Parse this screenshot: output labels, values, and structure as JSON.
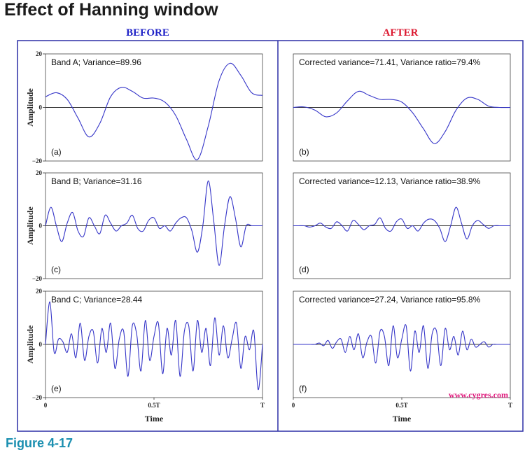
{
  "page": {
    "title": "Effect of Hanning window",
    "figure_label": "Figure 4-17",
    "before_header": "BEFORE",
    "after_header": "AFTER",
    "watermark": "www.cygres.com",
    "colors": {
      "before": "#1f22c7",
      "after": "#dc1830",
      "frame": "#2c2fa6",
      "curve": "#3535c8",
      "watermark": "#e0187c"
    }
  },
  "chart_data": [
    {
      "type": "line",
      "panel": "(a)",
      "annotation": "Band A; Variance=89.96",
      "ylabel": "Amplitude",
      "xlabel": "",
      "ylim": [
        -20,
        20
      ],
      "yticks": [
        "20",
        "0",
        "−20"
      ],
      "xticks": [],
      "series": [
        {
          "name": "Band A",
          "x": [
            0,
            0.05,
            0.1,
            0.15,
            0.2,
            0.25,
            0.3,
            0.35,
            0.4,
            0.45,
            0.5,
            0.55,
            0.6,
            0.65,
            0.7,
            0.75,
            0.8,
            0.85,
            0.9,
            0.95,
            1
          ],
          "values": [
            4,
            5.5,
            3,
            -4,
            -11,
            -6,
            4,
            7.5,
            6,
            3.5,
            3.5,
            2,
            -3,
            -12,
            -19.5,
            -7,
            10,
            16.5,
            12,
            5.5,
            4.5
          ]
        }
      ]
    },
    {
      "type": "line",
      "panel": "(b)",
      "annotation": "Corrected variance=71.41, Variance ratio=79.4%",
      "ylabel": "",
      "xlabel": "",
      "ylim": [
        -20,
        20
      ],
      "yticks": [],
      "xticks": [],
      "series": [
        {
          "name": "Band A windowed",
          "x": [
            0,
            0.05,
            0.1,
            0.15,
            0.2,
            0.25,
            0.3,
            0.35,
            0.4,
            0.45,
            0.5,
            0.55,
            0.6,
            0.65,
            0.7,
            0.75,
            0.8,
            0.85,
            0.9,
            0.95,
            1
          ],
          "values": [
            0,
            0.2,
            -1,
            -3.5,
            -2,
            2.5,
            6,
            4.5,
            3,
            3,
            2,
            -2,
            -8,
            -13.5,
            -9,
            -1,
            3.5,
            3,
            0.5,
            0,
            0
          ]
        }
      ]
    },
    {
      "type": "line",
      "panel": "(c)",
      "annotation": "Band B; Variance=31.16",
      "ylabel": "Amplitude",
      "xlabel": "",
      "ylim": [
        -20,
        20
      ],
      "yticks": [
        "20",
        "0",
        "−20"
      ],
      "xticks": [],
      "series": [
        {
          "name": "Band B",
          "x": [
            0,
            0.025,
            0.05,
            0.075,
            0.1,
            0.125,
            0.15,
            0.175,
            0.2,
            0.225,
            0.25,
            0.275,
            0.3,
            0.325,
            0.35,
            0.375,
            0.4,
            0.425,
            0.45,
            0.475,
            0.5,
            0.525,
            0.55,
            0.575,
            0.6,
            0.625,
            0.65,
            0.675,
            0.7,
            0.725,
            0.75,
            0.775,
            0.8,
            0.825,
            0.85,
            0.875,
            0.9,
            0.925,
            0.95,
            0.975,
            1
          ],
          "values": [
            0,
            7,
            0,
            -6,
            1,
            5,
            -2,
            -4,
            3,
            0,
            -3,
            4,
            1,
            -2,
            0,
            1,
            4,
            -1,
            -2,
            2,
            3,
            -1,
            0,
            -2,
            1,
            3,
            3,
            -2,
            -10,
            0,
            17,
            2,
            -15,
            0,
            11,
            3,
            -8,
            0,
            0,
            0,
            0
          ]
        }
      ]
    },
    {
      "type": "line",
      "panel": "(d)",
      "annotation": "Corrected variance=12.13,  Variance ratio=38.9%",
      "ylabel": "",
      "xlabel": "",
      "ylim": [
        -20,
        20
      ],
      "yticks": [],
      "xticks": [],
      "series": [
        {
          "name": "Band B windowed",
          "x": [
            0,
            0.025,
            0.05,
            0.075,
            0.1,
            0.125,
            0.15,
            0.175,
            0.2,
            0.225,
            0.25,
            0.275,
            0.3,
            0.325,
            0.35,
            0.375,
            0.4,
            0.425,
            0.45,
            0.475,
            0.5,
            0.525,
            0.55,
            0.575,
            0.6,
            0.625,
            0.65,
            0.675,
            0.7,
            0.725,
            0.75,
            0.775,
            0.8,
            0.825,
            0.85,
            0.875,
            0.9,
            0.925,
            0.95,
            0.975,
            1
          ],
          "values": [
            0,
            0,
            0,
            -0.5,
            0,
            1,
            -0.5,
            -1,
            1.5,
            0,
            -2,
            2,
            0.5,
            -1.5,
            0,
            0.5,
            3,
            -1,
            -2,
            1.5,
            2.5,
            -1,
            0,
            -2,
            1,
            2.5,
            2,
            -1,
            -6,
            0,
            7,
            1,
            -5,
            0,
            2,
            0.5,
            -1,
            0,
            0,
            0,
            0
          ]
        }
      ]
    },
    {
      "type": "line",
      "panel": "(e)",
      "annotation": "Band C; Variance=28.44",
      "ylabel": "Amplitude",
      "xlabel": "Time",
      "ylim": [
        -20,
        20
      ],
      "yticks": [
        "20",
        "0",
        "−20"
      ],
      "xticks": [
        "0",
        "0.5T",
        "T"
      ],
      "series": [
        {
          "name": "Band C",
          "x": [
            0,
            0.02,
            0.04,
            0.06,
            0.08,
            0.1,
            0.12,
            0.14,
            0.16,
            0.18,
            0.2,
            0.22,
            0.24,
            0.26,
            0.28,
            0.3,
            0.32,
            0.34,
            0.36,
            0.38,
            0.4,
            0.42,
            0.44,
            0.46,
            0.48,
            0.5,
            0.52,
            0.54,
            0.56,
            0.58,
            0.6,
            0.62,
            0.64,
            0.66,
            0.68,
            0.7,
            0.72,
            0.74,
            0.76,
            0.78,
            0.8,
            0.82,
            0.84,
            0.86,
            0.88,
            0.9,
            0.92,
            0.94,
            0.96,
            0.98,
            1
          ],
          "values": [
            0,
            16,
            -3,
            2,
            1,
            -3,
            4,
            -5,
            8,
            -6,
            3,
            5,
            -7,
            6,
            -3,
            8,
            -9,
            2,
            5,
            -12,
            7,
            4,
            -10,
            9,
            -6,
            3,
            8,
            -11,
            6,
            -4,
            9,
            -12,
            5,
            7,
            -10,
            9,
            -3,
            6,
            -8,
            10,
            -4,
            7,
            -5,
            2,
            8,
            -9,
            3,
            -2,
            5,
            -17,
            0
          ]
        }
      ]
    },
    {
      "type": "line",
      "panel": "(f)",
      "annotation": "Corrected variance=27.24, Variance ratio=95.8%",
      "ylabel": "",
      "xlabel": "Time",
      "ylim": [
        -20,
        20
      ],
      "yticks": [],
      "xticks": [
        "0",
        "0.5T",
        "T"
      ],
      "series": [
        {
          "name": "Band C windowed",
          "x": [
            0,
            0.02,
            0.04,
            0.06,
            0.08,
            0.1,
            0.12,
            0.14,
            0.16,
            0.18,
            0.2,
            0.22,
            0.24,
            0.26,
            0.28,
            0.3,
            0.32,
            0.34,
            0.36,
            0.38,
            0.4,
            0.42,
            0.44,
            0.46,
            0.48,
            0.5,
            0.52,
            0.54,
            0.56,
            0.58,
            0.6,
            0.62,
            0.64,
            0.66,
            0.68,
            0.7,
            0.72,
            0.74,
            0.76,
            0.78,
            0.8,
            0.82,
            0.84,
            0.86,
            0.88,
            0.9,
            0.92,
            0.94,
            0.96,
            0.98,
            1
          ],
          "values": [
            0,
            0,
            0,
            0,
            0,
            0,
            0.5,
            -0.5,
            1.5,
            -1.5,
            1,
            2,
            -3,
            3,
            -2,
            4,
            -5,
            1,
            3,
            -7,
            5,
            3,
            -8,
            7,
            -5,
            2,
            7,
            -10,
            5,
            -3,
            7,
            -9,
            4,
            5,
            -8,
            6,
            -2,
            3,
            -4,
            5,
            -2,
            2,
            -1,
            0,
            1,
            -1,
            0,
            0,
            0,
            0,
            0
          ]
        }
      ]
    }
  ]
}
